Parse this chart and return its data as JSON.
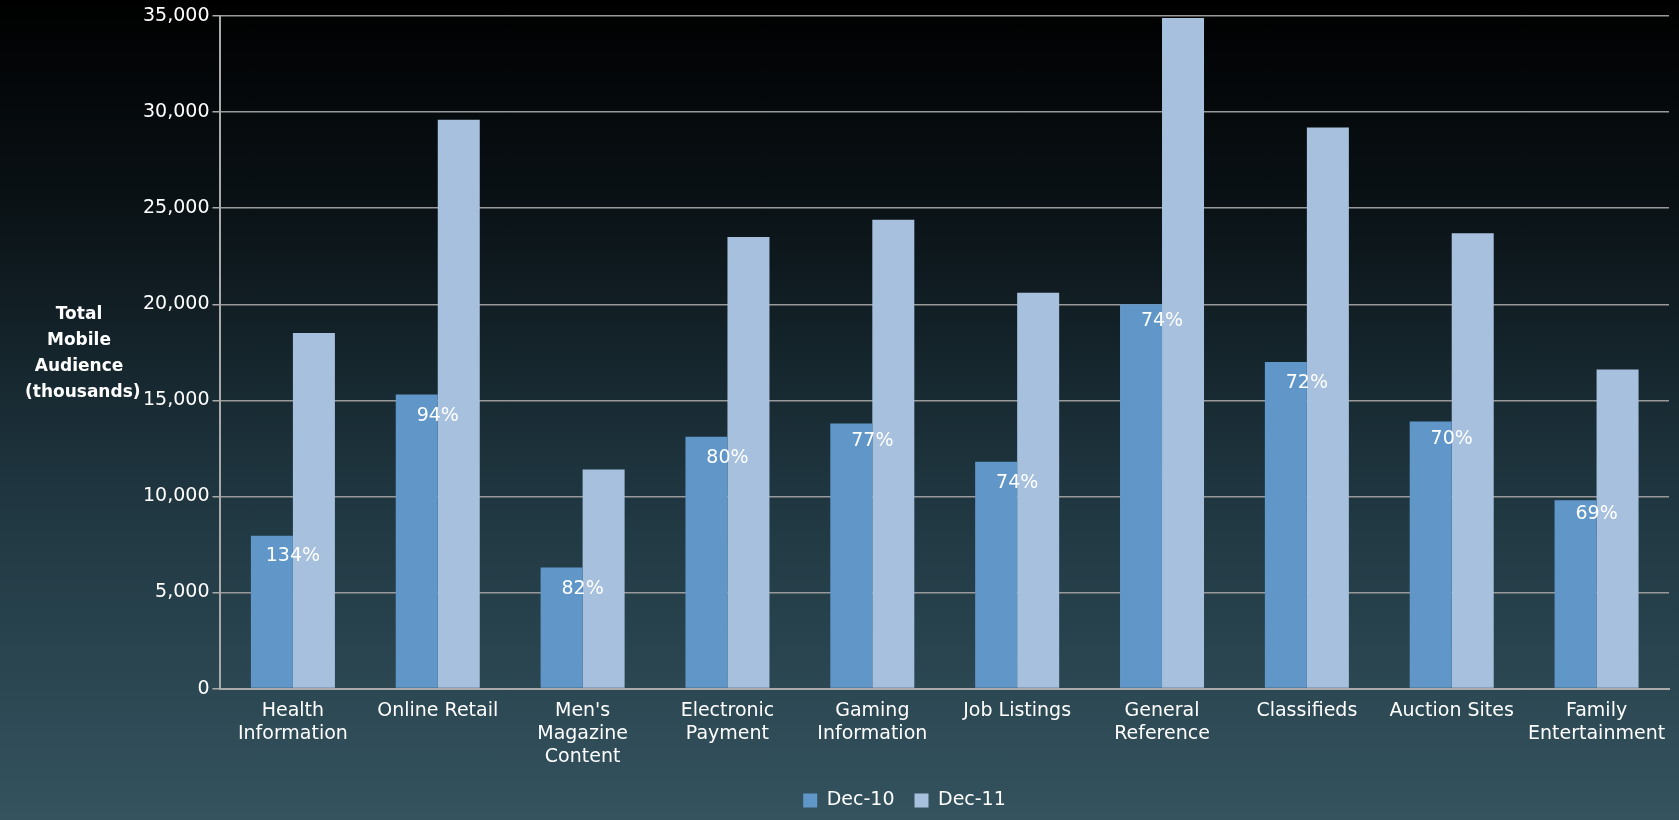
{
  "chart_data": {
    "type": "bar",
    "ylabel": "Total Mobile Audience (thousands)",
    "categories": [
      "Health Information",
      "Online Retail",
      "Men's Magazine Content",
      "Electronic Payment",
      "Gaming Information",
      "Job Listings",
      "General Reference",
      "Classifieds",
      "Auction Sites",
      "Family Entertainment"
    ],
    "series": [
      {
        "name": "Dec-10",
        "color": "#6097c8",
        "values": [
          7950,
          15300,
          6300,
          13100,
          13800,
          11800,
          20000,
          17000,
          13900,
          9800
        ]
      },
      {
        "name": "Dec-11",
        "color": "#a6c0de",
        "values": [
          18500,
          29600,
          11400,
          23500,
          24400,
          20600,
          34900,
          29200,
          23700,
          16600
        ]
      }
    ],
    "ylim": [
      0,
      35000
    ],
    "yticks": [
      0,
      {
        "value": 5000,
        "label": "5,000"
      },
      {
        "value": 10000,
        "label": "10,000"
      },
      {
        "value": 15000,
        "label": "15,000"
      },
      {
        "value": 20000,
        "label": "20,000"
      },
      {
        "value": 25000,
        "label": "25,000"
      },
      {
        "value": 30000,
        "label": "30,000"
      },
      {
        "value": 35000,
        "label": "35,000"
      }
    ],
    "grid": "y",
    "legend": "bottom",
    "annotations": [
      {
        "text": "134%",
        "x": "Health Information",
        "y": 6900
      },
      {
        "text": "94%",
        "x": "Online Retail",
        "y": 14200
      },
      {
        "text": "82%",
        "x": "Men's Magazine Content",
        "y": 5200
      },
      {
        "text": "80%",
        "x": "Electronic Payment",
        "y": 12000
      },
      {
        "text": "77%",
        "x": "Gaming Information",
        "y": 12900
      },
      {
        "text": "74%",
        "x": "Job Listings",
        "y": 10700
      },
      {
        "text": "74%",
        "x": "General Reference",
        "y": 19100
      },
      {
        "text": "72%",
        "x": "Classifieds",
        "y": 15900
      },
      {
        "text": "70%",
        "x": "Auction Sites",
        "y": 13000
      },
      {
        "text": "69%",
        "x": "Family Entertainment",
        "y": 9100
      }
    ]
  }
}
